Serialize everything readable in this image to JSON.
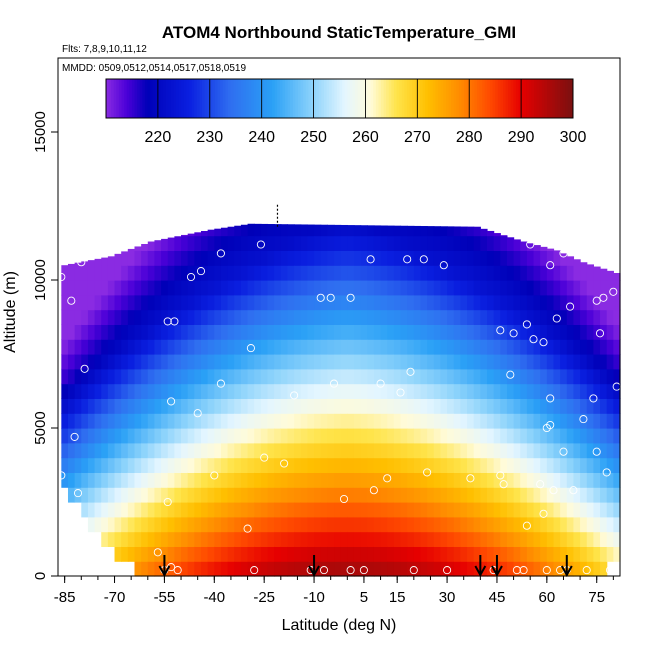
{
  "chart_data": {
    "type": "heatmap",
    "title": "ATOM4 Northbound StaticTemperature_GMI",
    "annotations": [
      "Flts: 7,8,9,10,11,12",
      "MMDD: 0509,0512,0514,0517,0518,0519"
    ],
    "xlabel": "Latitude (deg N)",
    "ylabel": "Altitude (m)",
    "xlim": [
      -87,
      82
    ],
    "ylim": [
      0,
      17500
    ],
    "x_ticks": [
      "-85",
      "-70",
      "-55",
      "-40",
      "-25",
      "-10",
      "5",
      "15",
      "30",
      "45",
      "60",
      "75"
    ],
    "x_tick_values": [
      -85,
      -70,
      -55,
      -40,
      -25,
      -10,
      5,
      15,
      30,
      45,
      60,
      75
    ],
    "x_minor_step": 5,
    "y_ticks": [
      "0",
      "5000",
      "10000",
      "15000"
    ],
    "y_tick_values": [
      0,
      5000,
      10000,
      15000
    ],
    "colorbar": {
      "ticks": [
        "220",
        "230",
        "240",
        "250",
        "260",
        "270",
        "280",
        "290",
        "300"
      ],
      "tick_values": [
        220,
        230,
        240,
        250,
        260,
        270,
        280,
        290,
        300
      ],
      "range": [
        210,
        300
      ],
      "stops": [
        {
          "value": 210,
          "color": "#8a2be2"
        },
        {
          "value": 214,
          "color": "#4b00d8"
        },
        {
          "value": 218,
          "color": "#0000b8"
        },
        {
          "value": 226,
          "color": "#0a1fe0"
        },
        {
          "value": 234,
          "color": "#2f6ef0"
        },
        {
          "value": 242,
          "color": "#2aa0f6"
        },
        {
          "value": 250,
          "color": "#8fd4fb"
        },
        {
          "value": 256,
          "color": "#e4f6ff"
        },
        {
          "value": 261,
          "color": "#fffbd9"
        },
        {
          "value": 266,
          "color": "#ffe44a"
        },
        {
          "value": 272,
          "color": "#ffbf00"
        },
        {
          "value": 278,
          "color": "#ff8d00"
        },
        {
          "value": 284,
          "color": "#ff4a00"
        },
        {
          "value": 290,
          "color": "#e60000"
        },
        {
          "value": 300,
          "color": "#7a1010"
        }
      ]
    },
    "field": {
      "lat_step": 2,
      "alt_step": 500,
      "top_altitude": [
        {
          "lat": -86,
          "alt": 10500
        },
        {
          "lat": -72,
          "alt": 10800
        },
        {
          "lat": -60,
          "alt": 11300
        },
        {
          "lat": -42,
          "alt": 11700
        },
        {
          "lat": -30,
          "alt": 11900
        },
        {
          "lat": 38,
          "alt": 11800
        },
        {
          "lat": 52,
          "alt": 11300
        },
        {
          "lat": 62,
          "alt": 11000
        },
        {
          "lat": 70,
          "alt": 10600
        },
        {
          "lat": 81,
          "alt": 10200
        }
      ],
      "bottom_altitude": [
        {
          "lat": -86,
          "alt": 3200
        },
        {
          "lat": -80,
          "alt": 1800
        },
        {
          "lat": -70,
          "alt": 600
        },
        {
          "lat": -60,
          "alt": 0
        },
        {
          "lat": 70,
          "alt": 0
        },
        {
          "lat": 78,
          "alt": 300
        },
        {
          "lat": 81,
          "alt": 800
        }
      ]
    },
    "sample_points": [
      [
        -86,
        10100
      ],
      [
        -83,
        9300
      ],
      [
        -80,
        10600
      ],
      [
        -79,
        7000
      ],
      [
        -82,
        4700
      ],
      [
        -86,
        3400
      ],
      [
        -81,
        2800
      ],
      [
        -83,
        1300
      ],
      [
        -57,
        800
      ],
      [
        -55,
        200
      ],
      [
        -53,
        300
      ],
      [
        -51,
        200
      ],
      [
        -54,
        2500
      ],
      [
        -53,
        5900
      ],
      [
        -54,
        8600
      ],
      [
        -52,
        8600
      ],
      [
        -47,
        10100
      ],
      [
        -44,
        10300
      ],
      [
        -38,
        10900
      ],
      [
        -45,
        5500
      ],
      [
        -40,
        3400
      ],
      [
        -38,
        6500
      ],
      [
        -30,
        1600
      ],
      [
        -29,
        7700
      ],
      [
        -26,
        11200
      ],
      [
        -25,
        4000
      ],
      [
        -19,
        3800
      ],
      [
        -16,
        6100
      ],
      [
        -28,
        200
      ],
      [
        -11,
        200
      ],
      [
        -7,
        200
      ],
      [
        -8,
        9400
      ],
      [
        -5,
        9400
      ],
      [
        -4,
        6500
      ],
      [
        -1,
        2600
      ],
      [
        1,
        9400
      ],
      [
        1,
        200
      ],
      [
        5,
        200
      ],
      [
        7,
        10700
      ],
      [
        8,
        2900
      ],
      [
        10,
        6500
      ],
      [
        12,
        3300
      ],
      [
        16,
        6200
      ],
      [
        18,
        10700
      ],
      [
        19,
        6900
      ],
      [
        20,
        200
      ],
      [
        23,
        10700
      ],
      [
        24,
        3500
      ],
      [
        29,
        10500
      ],
      [
        30,
        200
      ],
      [
        37,
        3300
      ],
      [
        44,
        200
      ],
      [
        46,
        8300
      ],
      [
        46,
        3400
      ],
      [
        47,
        3100
      ],
      [
        49,
        11600
      ],
      [
        49,
        6800
      ],
      [
        50,
        8200
      ],
      [
        51,
        200
      ],
      [
        53,
        200
      ],
      [
        54,
        1700
      ],
      [
        54,
        8500
      ],
      [
        55,
        11200
      ],
      [
        56,
        8000
      ],
      [
        58,
        3100
      ],
      [
        59,
        7900
      ],
      [
        59,
        2100
      ],
      [
        60,
        5000
      ],
      [
        60,
        200
      ],
      [
        61,
        6000
      ],
      [
        61,
        10500
      ],
      [
        61,
        5100
      ],
      [
        62,
        2900
      ],
      [
        63,
        8700
      ],
      [
        64,
        200
      ],
      [
        65,
        4200
      ],
      [
        65,
        10900
      ],
      [
        66,
        200
      ],
      [
        67,
        9100
      ],
      [
        68,
        2900
      ],
      [
        71,
        5300
      ],
      [
        72,
        200
      ],
      [
        73,
        10900
      ],
      [
        74,
        6000
      ],
      [
        75,
        9300
      ],
      [
        75,
        4200
      ],
      [
        76,
        8200
      ],
      [
        77,
        9400
      ],
      [
        78,
        3500
      ],
      [
        79,
        200
      ],
      [
        80,
        9600
      ],
      [
        81,
        6400
      ]
    ],
    "arrows_lat": [
      -55,
      -10,
      40,
      45,
      66
    ],
    "dashed_segment": {
      "lat": -21,
      "alt_from": 11800,
      "alt_to": 12600
    }
  }
}
